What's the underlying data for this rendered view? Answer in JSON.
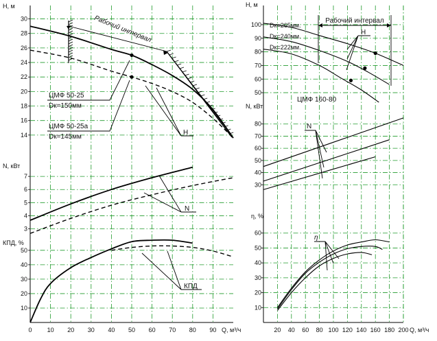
{
  "chart_data": [
    {
      "type": "line",
      "title": "",
      "panels": [
        {
          "id": "H",
          "ylabel": "H, м",
          "ylim": [
            12,
            31
          ],
          "yticks": [
            14,
            16,
            18,
            20,
            22,
            24,
            26,
            28,
            30
          ],
          "series": [
            {
              "name": "ЦМФ 50-25",
              "style": "solid",
              "x": [
                0,
                20,
                40,
                50,
                60,
                70,
                80,
                90,
                100
              ],
              "y": [
                29,
                27.6,
                25.8,
                25.0,
                23.7,
                22.2,
                20.3,
                17.5,
                13.6
              ]
            },
            {
              "name": "ЦМФ 50-25а",
              "style": "dashed",
              "x": [
                0,
                20,
                40,
                50,
                60,
                70,
                80,
                90,
                100
              ],
              "y": [
                25.7,
                24.6,
                22.8,
                22.0,
                21.1,
                20.0,
                18.5,
                16.3,
                13.6
              ]
            }
          ],
          "markers": [
            {
              "x": 50,
              "y": 25.0
            },
            {
              "x": 50,
              "y": 22.0
            }
          ]
        },
        {
          "id": "N",
          "ylabel": "N, кВт",
          "ylim": [
            2.4,
            8
          ],
          "yticks": [
            3,
            4,
            5,
            6,
            7
          ],
          "series": [
            {
              "name": "ЦМФ 50-25",
              "style": "solid",
              "x": [
                0,
                20,
                40,
                60,
                80
              ],
              "y": [
                3.65,
                4.9,
                6.0,
                6.9,
                7.7
              ]
            },
            {
              "name": "ЦМФ 50-25а",
              "style": "dashed",
              "x": [
                0,
                20,
                40,
                60,
                80,
                100
              ],
              "y": [
                2.65,
                3.8,
                4.8,
                5.6,
                6.3,
                6.9
              ]
            }
          ]
        },
        {
          "id": "KPD",
          "ylabel": "КПД, %",
          "ylim": [
            0,
            58
          ],
          "yticks": [
            10,
            20,
            30,
            40,
            50
          ],
          "series": [
            {
              "name": "ЦМФ 50-25",
              "style": "solid",
              "x": [
                0,
                5,
                10,
                20,
                30,
                40,
                50,
                60,
                70,
                80
              ],
              "y": [
                0,
                16,
                27,
                38,
                45,
                51,
                56,
                57,
                57,
                55
              ]
            },
            {
              "name": "ЦМФ 50-25а",
              "style": "dashed",
              "x": [
                40,
                50,
                60,
                70,
                80,
                90,
                100
              ],
              "y": [
                50,
                52,
                53,
                53,
                52,
                49.5,
                45.5
              ]
            }
          ]
        }
      ],
      "xlabel": "Q, м³/ч",
      "xlim": [
        0,
        100
      ],
      "xticks": [
        0,
        10,
        20,
        30,
        40,
        50,
        60,
        70,
        80,
        90
      ],
      "annotations": [
        "Рабочий интервал",
        "ЦМФ 50-25",
        "Dк=150мм",
        "ЦМФ 50-25а",
        "Dк=145мм",
        "H",
        "N",
        "КПД"
      ]
    },
    {
      "type": "line",
      "title": "ЦМФ 160-80",
      "panels": [
        {
          "id": "H",
          "ylabel": "H, м",
          "ylim": [
            45,
            105
          ],
          "yticks": [
            50,
            60,
            70,
            80,
            90,
            100
          ],
          "series": [
            {
              "name": "Dк=265мм.",
              "x": [
                0,
                40,
                80,
                120,
                160,
                200
              ],
              "y": [
                101,
                98,
                92,
                86,
                79,
                70
              ]
            },
            {
              "name": "Dк=240мм.",
              "x": [
                0,
                40,
                80,
                120,
                150,
                180
              ],
              "y": [
                91,
                87.5,
                81,
                73,
                65,
                56
              ]
            },
            {
              "name": "Dк=222мм.",
              "x": [
                0,
                40,
                80,
                110,
                140,
                165
              ],
              "y": [
                82,
                78.5,
                70,
                61,
                52,
                43
              ]
            }
          ],
          "markers": [
            {
              "x": 160,
              "y": 79
            },
            {
              "x": 145,
              "y": 68
            },
            {
              "x": 125,
              "y": 59
            }
          ]
        },
        {
          "id": "N",
          "ylabel": "N, кВт",
          "ylim": [
            20,
            90
          ],
          "yticks": [
            30,
            40,
            50,
            60,
            70,
            80
          ],
          "series": [
            {
              "name": "Dк=265мм.",
              "x": [
                0,
                200
              ],
              "y": [
                45,
                85
              ]
            },
            {
              "name": "Dк=240мм.",
              "x": [
                0,
                180
              ],
              "y": [
                33,
                67
              ]
            },
            {
              "name": "Dк=222мм.",
              "x": [
                0,
                160
              ],
              "y": [
                26,
                53
              ]
            }
          ]
        },
        {
          "id": "eta",
          "ylabel": "η, %",
          "ylim": [
            0,
            70
          ],
          "yticks": [
            10,
            20,
            30,
            40,
            50,
            60
          ],
          "series": [
            {
              "name": "Dк=265мм.",
              "x": [
                20,
                40,
                60,
                80,
                100,
                120,
                140,
                160,
                180
              ],
              "y": [
                10,
                23,
                34,
                42,
                48,
                52,
                54,
                55.5,
                54
              ]
            },
            {
              "name": "Dк=240мм.",
              "x": [
                20,
                40,
                60,
                80,
                100,
                120,
                140,
                160,
                170
              ],
              "y": [
                9,
                22,
                33,
                40.5,
                46,
                49.5,
                51,
                51,
                49
              ]
            },
            {
              "name": "Dк=222мм.",
              "x": [
                20,
                40,
                60,
                80,
                100,
                120,
                140,
                155
              ],
              "y": [
                8,
                20,
                30,
                38,
                43,
                46,
                47,
                45.5
              ]
            }
          ]
        }
      ],
      "xlabel": "Q, м³/ч",
      "xlim": [
        0,
        200
      ],
      "xticks": [
        20,
        40,
        60,
        80,
        100,
        120,
        140,
        160,
        180,
        200
      ],
      "annotations": [
        "Рабочий интервал",
        "H",
        "N",
        "η"
      ]
    }
  ]
}
